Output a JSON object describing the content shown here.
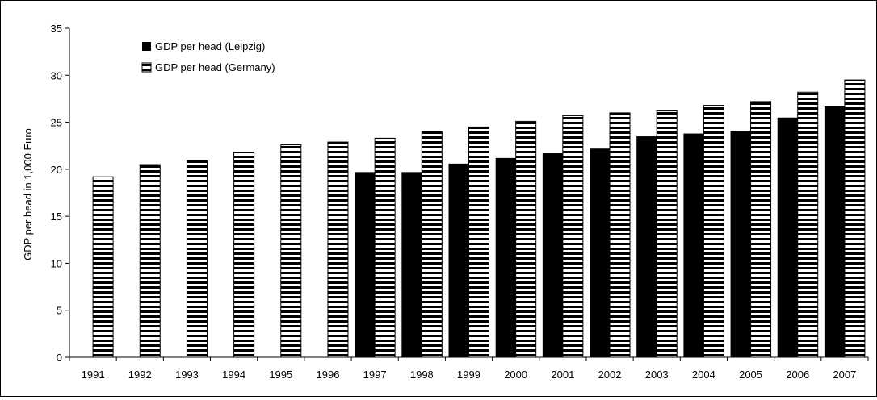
{
  "chart_data": {
    "type": "bar",
    "title": "",
    "xlabel": "",
    "ylabel": "GDP per head in 1,000 Euro",
    "ylim": [
      0,
      35
    ],
    "yticks": [
      0,
      5,
      10,
      15,
      20,
      25,
      30,
      35
    ],
    "grid": false,
    "legend_position": "top-left",
    "categories": [
      "1991",
      "1992",
      "1993",
      "1994",
      "1995",
      "1996",
      "1997",
      "1998",
      "1999",
      "2000",
      "2001",
      "2002",
      "2003",
      "2004",
      "2005",
      "2006",
      "2007"
    ],
    "series": [
      {
        "name": "GDP per head (Leipzig)",
        "pattern": "solid",
        "color": "#000000",
        "values": [
          null,
          null,
          null,
          null,
          null,
          null,
          19.7,
          19.7,
          20.6,
          21.2,
          21.7,
          22.2,
          23.5,
          23.8,
          24.1,
          25.5,
          26.7
        ]
      },
      {
        "name": "GDP per head (Germany)",
        "pattern": "horizontal-stripes",
        "color": "#000000",
        "values": [
          19.2,
          20.5,
          20.9,
          21.8,
          22.6,
          22.9,
          23.3,
          24.0,
          24.5,
          25.1,
          25.7,
          26.0,
          26.2,
          26.8,
          27.2,
          28.2,
          29.5
        ]
      }
    ]
  }
}
